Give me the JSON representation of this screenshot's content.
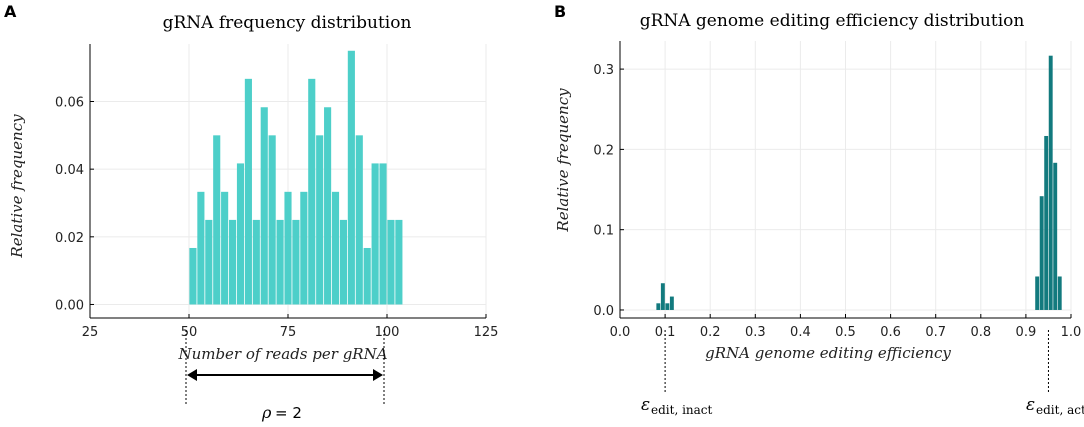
{
  "chart_data": [
    {
      "type": "bar",
      "panel": "A",
      "title": "gRNA frequency distribution",
      "xlabel": "Number of reads per gRNA",
      "ylabel": "Relative frequency",
      "xlim": [
        25,
        125
      ],
      "ylim": [
        -0.004,
        0.077
      ],
      "xticks": [
        "25",
        "50",
        "75",
        "100",
        "125"
      ],
      "yticks": [
        "0.00",
        "0.02",
        "0.04",
        "0.06"
      ],
      "bin_start": 50,
      "bin_width": 2,
      "color": "#4dcfc9",
      "values": [
        0.0167,
        0.0333,
        0.025,
        0.05,
        0.0333,
        0.025,
        0.0417,
        0.0667,
        0.025,
        0.0583,
        0.05,
        0.025,
        0.0333,
        0.025,
        0.0333,
        0.0667,
        0.05,
        0.0583,
        0.0333,
        0.025,
        0.075,
        0.05,
        0.0167,
        0.0417,
        0.0417,
        0.025,
        0.025
      ],
      "grid": true,
      "legend": "none"
    },
    {
      "type": "bar",
      "panel": "B",
      "title": "gRNA genome editing efficiency distribution",
      "xlabel": "gRNA genome editing efficiency",
      "ylabel": "Relative frequency",
      "xlim": [
        0.0,
        1.0
      ],
      "ylim": [
        -0.01,
        0.335
      ],
      "xticks": [
        "0.0",
        "0.1",
        "0.2",
        "0.3",
        "0.4",
        "0.5",
        "0.6",
        "0.7",
        "0.8",
        "0.9",
        "1.0"
      ],
      "yticks": [
        "0.0",
        "0.1",
        "0.2",
        "0.3"
      ],
      "color": "#127a7e",
      "bins": [
        {
          "x": 0.085,
          "value": 0.0083
        },
        {
          "x": 0.095,
          "value": 0.0333
        },
        {
          "x": 0.105,
          "value": 0.0083
        },
        {
          "x": 0.115,
          "value": 0.0167
        },
        {
          "x": 0.925,
          "value": 0.0417
        },
        {
          "x": 0.935,
          "value": 0.1417
        },
        {
          "x": 0.945,
          "value": 0.2167
        },
        {
          "x": 0.955,
          "value": 0.3167
        },
        {
          "x": 0.965,
          "value": 0.1833
        },
        {
          "x": 0.975,
          "value": 0.0417
        }
      ],
      "grid": true,
      "legend": "none"
    }
  ],
  "annotations": {
    "rho_symbol": "ρ",
    "rho_value": "= 2",
    "eps_symbol": "ε",
    "eps_inact_sub": "edit, inact",
    "eps_act_sub": "edit, act",
    "eps_inact_x": 0.1,
    "eps_act_x": 0.95,
    "rho_span": [
      50,
      100
    ]
  }
}
